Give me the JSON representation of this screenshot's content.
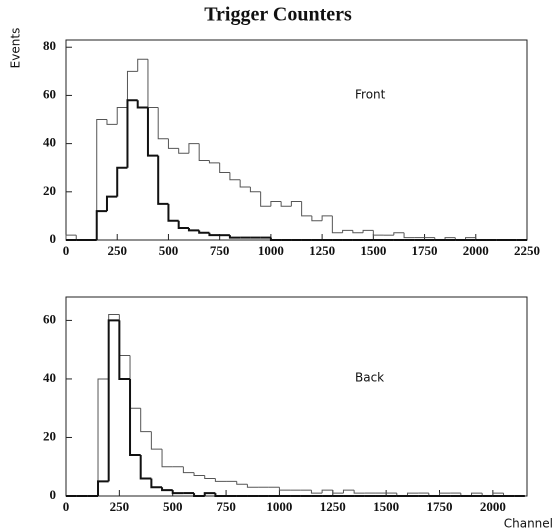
{
  "title": "Trigger Counters",
  "chart_data": [
    {
      "type": "histogram",
      "annotation": "Front",
      "ylabel": "Events",
      "bins": [
        0,
        50,
        100,
        150,
        200,
        250,
        300,
        350,
        400,
        450,
        500,
        550,
        600,
        650,
        700,
        750,
        800,
        850,
        900,
        950,
        1000,
        1050,
        1100,
        1150,
        1200,
        1250,
        1300,
        1350,
        1400,
        1450,
        1500,
        1550,
        1600,
        1650,
        1700,
        1750,
        1800,
        1850,
        1900,
        1950,
        2000,
        2050,
        2100,
        2150,
        2200,
        2250
      ],
      "xlim": [
        0,
        2250
      ],
      "xticks": [
        0,
        250,
        500,
        750,
        1000,
        1250,
        1500,
        1750,
        2000,
        2250
      ],
      "ylim": [
        0,
        83
      ],
      "yticks": [
        0,
        20,
        40,
        60,
        80
      ],
      "series": [
        {
          "color": "#555555",
          "width": 1,
          "values": [
            2,
            0,
            0,
            50,
            48,
            55,
            70,
            75,
            55,
            42,
            38,
            36,
            40,
            33,
            32,
            28,
            25,
            22,
            20,
            14,
            16,
            14,
            16,
            10,
            8,
            10,
            3,
            4,
            3,
            4,
            2,
            2,
            3,
            1,
            1,
            1,
            0,
            1,
            0,
            1,
            0,
            0,
            0,
            0,
            0
          ]
        },
        {
          "color": "#111111",
          "width": 2,
          "values": [
            0,
            0,
            0,
            12,
            18,
            30,
            58,
            55,
            35,
            15,
            8,
            5,
            4,
            3,
            2,
            2,
            1,
            1,
            1,
            1,
            0,
            0,
            0,
            0,
            0,
            0,
            0,
            0,
            0,
            0,
            0,
            0,
            0,
            0,
            0,
            0,
            0,
            0,
            0,
            0,
            0,
            0,
            0,
            0,
            0
          ]
        }
      ]
    },
    {
      "type": "histogram",
      "annotation": "Back",
      "xlabel": "Channel",
      "bins": [
        0,
        50,
        100,
        150,
        200,
        250,
        300,
        350,
        400,
        450,
        500,
        550,
        600,
        650,
        700,
        750,
        800,
        850,
        900,
        950,
        1000,
        1050,
        1100,
        1150,
        1200,
        1250,
        1300,
        1350,
        1400,
        1450,
        1500,
        1550,
        1600,
        1650,
        1700,
        1750,
        1800,
        1850,
        1900,
        1950,
        2000,
        2050,
        2100,
        2150
      ],
      "xlim": [
        0,
        2160
      ],
      "xticks": [
        0,
        250,
        500,
        750,
        1000,
        1250,
        1500,
        1750,
        2000
      ],
      "ylim": [
        0,
        68
      ],
      "yticks": [
        0,
        20,
        40,
        60
      ],
      "series": [
        {
          "color": "#555555",
          "width": 1,
          "values": [
            0,
            0,
            0,
            40,
            62,
            48,
            30,
            22,
            16,
            10,
            10,
            8,
            7,
            6,
            5,
            5,
            4,
            3,
            3,
            3,
            2,
            2,
            2,
            1,
            2,
            1,
            2,
            1,
            1,
            1,
            1,
            0,
            1,
            1,
            0,
            1,
            1,
            0,
            1,
            0,
            1,
            0,
            0
          ]
        },
        {
          "color": "#111111",
          "width": 2,
          "values": [
            0,
            0,
            0,
            5,
            60,
            40,
            14,
            6,
            3,
            2,
            1,
            1,
            0,
            1,
            0,
            0,
            0,
            0,
            0,
            0,
            0,
            0,
            0,
            0,
            0,
            0,
            0,
            0,
            0,
            0,
            0,
            0,
            0,
            0,
            0,
            0,
            0,
            0,
            0,
            0,
            0,
            0,
            0
          ]
        }
      ]
    }
  ]
}
